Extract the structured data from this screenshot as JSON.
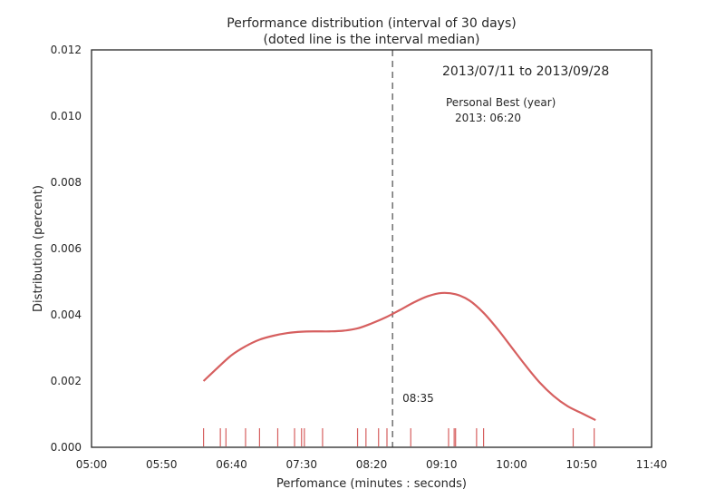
{
  "chart_data": {
    "type": "line",
    "title": "Performance distribution (interval of 30 days)",
    "subtitle": "(doted line is the interval median)",
    "xlabel": "Perfomance (minutes : seconds)",
    "ylabel": "Distribution (percent)",
    "x_unit": "seconds",
    "xlim": [
      300,
      700
    ],
    "ylim": [
      0,
      0.012
    ],
    "x_ticks": [
      {
        "value": 300,
        "label": "05:00"
      },
      {
        "value": 350,
        "label": "05:50"
      },
      {
        "value": 400,
        "label": "06:40"
      },
      {
        "value": 450,
        "label": "07:30"
      },
      {
        "value": 500,
        "label": "08:20"
      },
      {
        "value": 550,
        "label": "09:10"
      },
      {
        "value": 600,
        "label": "10:00"
      },
      {
        "value": 650,
        "label": "10:50"
      },
      {
        "value": 700,
        "label": "11:40"
      }
    ],
    "y_ticks": [
      {
        "value": 0,
        "label": "0.000"
      },
      {
        "value": 0.002,
        "label": "0.002"
      },
      {
        "value": 0.004,
        "label": "0.004"
      },
      {
        "value": 0.006,
        "label": "0.006"
      },
      {
        "value": 0.008,
        "label": "0.008"
      },
      {
        "value": 0.01,
        "label": "0.010"
      },
      {
        "value": 0.012,
        "label": "0.012"
      }
    ],
    "grid": false,
    "series": [
      {
        "color": "#d65f5f",
        "x": [
          380,
          390,
          400,
          410,
          420,
          430,
          440,
          450,
          460,
          470,
          480,
          490,
          500,
          510,
          520,
          530,
          540,
          550,
          560,
          570,
          580,
          590,
          600,
          610,
          620,
          630,
          640,
          650,
          660
        ],
        "y": [
          0.002,
          0.0024,
          0.00278,
          0.00305,
          0.00325,
          0.00337,
          0.00345,
          0.00349,
          0.0035,
          0.0035,
          0.00352,
          0.00359,
          0.00374,
          0.00392,
          0.00414,
          0.00437,
          0.00456,
          0.00466,
          0.00462,
          0.00443,
          0.00406,
          0.00357,
          0.00302,
          0.00247,
          0.00196,
          0.00155,
          0.00124,
          0.00103,
          0.00082
        ]
      }
    ],
    "rug": {
      "color": "#d65f5f",
      "x": [
        380,
        392,
        396,
        410,
        420,
        433,
        445,
        450,
        452,
        465,
        490,
        496,
        505,
        511,
        528,
        555,
        559,
        560,
        575,
        580,
        644,
        659
      ]
    },
    "median": {
      "x": 515,
      "label": "08:35",
      "color": "#777777"
    },
    "annotations": {
      "date_range": "2013/07/11 to 2013/09/28",
      "personal_best_heading": "Personal Best (year)",
      "personal_best_entries": [
        "2013: 06:20"
      ]
    }
  }
}
